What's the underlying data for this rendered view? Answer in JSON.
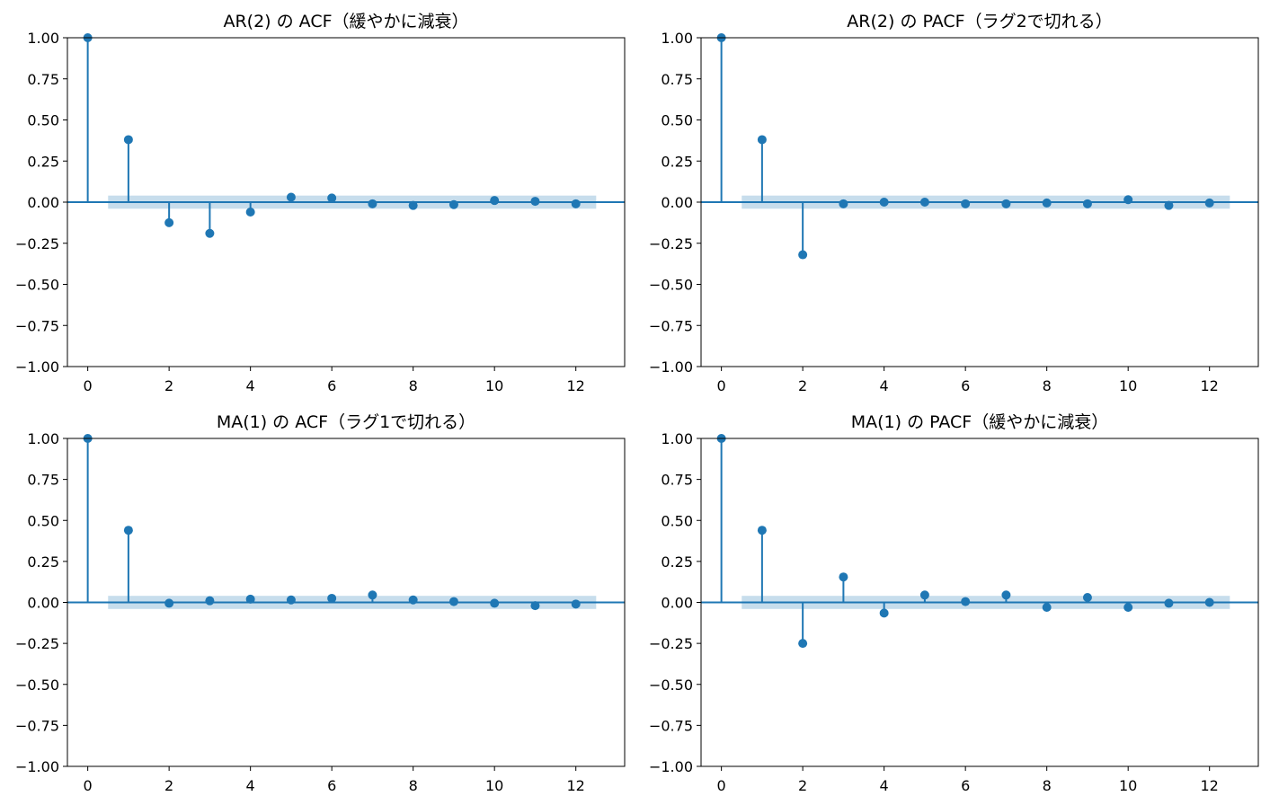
{
  "colors": {
    "stem": "#1f77b4",
    "marker": "#1f77b4",
    "confidence_band": "#1f77b4",
    "zero_line": "#1f77b4",
    "axes": "#000000"
  },
  "chart_data": [
    {
      "type": "stem",
      "title": "AR(2) の ACF（緩やかに減衰）",
      "xlabel": "",
      "ylabel": "",
      "xlim": [
        -0.5,
        13.2
      ],
      "ylim": [
        -1.0,
        1.0
      ],
      "x_ticks": [
        "0",
        "2",
        "4",
        "6",
        "8",
        "10",
        "12"
      ],
      "y_ticks": [
        "1.00",
        "0.75",
        "0.50",
        "0.25",
        "0.00",
        "−0.25",
        "−0.50",
        "−0.75",
        "−1.00"
      ],
      "grid": false,
      "confidence_band": {
        "lags": [
          0.5,
          12.5
        ],
        "halfwidth": 0.04
      },
      "lags": [
        0,
        1,
        2,
        3,
        4,
        5,
        6,
        7,
        8,
        9,
        10,
        11,
        12
      ],
      "values": [
        1.0,
        0.38,
        -0.125,
        -0.19,
        -0.06,
        0.03,
        0.025,
        -0.01,
        -0.02,
        -0.015,
        0.01,
        0.005,
        -0.01
      ]
    },
    {
      "type": "stem",
      "title": "AR(2) の PACF（ラグ2で切れる）",
      "xlabel": "",
      "ylabel": "",
      "xlim": [
        -0.5,
        13.2
      ],
      "ylim": [
        -1.0,
        1.0
      ],
      "x_ticks": [
        "0",
        "2",
        "4",
        "6",
        "8",
        "10",
        "12"
      ],
      "y_ticks": [
        "1.00",
        "0.75",
        "0.50",
        "0.25",
        "0.00",
        "−0.25",
        "−0.50",
        "−0.75",
        "−1.00"
      ],
      "grid": false,
      "confidence_band": {
        "lags": [
          0.5,
          12.5
        ],
        "halfwidth": 0.04
      },
      "lags": [
        0,
        1,
        2,
        3,
        4,
        5,
        6,
        7,
        8,
        9,
        10,
        11,
        12
      ],
      "values": [
        1.0,
        0.38,
        -0.32,
        -0.01,
        0.0,
        0.0,
        -0.01,
        -0.01,
        -0.005,
        -0.01,
        0.015,
        -0.02,
        -0.005
      ]
    },
    {
      "type": "stem",
      "title": "MA(1) の ACF（ラグ1で切れる）",
      "xlabel": "",
      "ylabel": "",
      "xlim": [
        -0.5,
        13.2
      ],
      "ylim": [
        -1.0,
        1.0
      ],
      "x_ticks": [
        "0",
        "2",
        "4",
        "6",
        "8",
        "10",
        "12"
      ],
      "y_ticks": [
        "1.00",
        "0.75",
        "0.50",
        "0.25",
        "0.00",
        "−0.25",
        "−0.50",
        "−0.75",
        "−1.00"
      ],
      "grid": false,
      "confidence_band": {
        "lags": [
          0.5,
          12.5
        ],
        "halfwidth": 0.04
      },
      "lags": [
        0,
        1,
        2,
        3,
        4,
        5,
        6,
        7,
        8,
        9,
        10,
        11,
        12
      ],
      "values": [
        1.0,
        0.44,
        -0.005,
        0.01,
        0.02,
        0.015,
        0.025,
        0.045,
        0.015,
        0.005,
        -0.005,
        -0.02,
        -0.01
      ]
    },
    {
      "type": "stem",
      "title": "MA(1) の PACF（緩やかに減衰）",
      "xlabel": "",
      "ylabel": "",
      "xlim": [
        -0.5,
        13.2
      ],
      "ylim": [
        -1.0,
        1.0
      ],
      "x_ticks": [
        "0",
        "2",
        "4",
        "6",
        "8",
        "10",
        "12"
      ],
      "y_ticks": [
        "1.00",
        "0.75",
        "0.50",
        "0.25",
        "0.00",
        "−0.25",
        "−0.50",
        "−0.75",
        "−1.00"
      ],
      "grid": false,
      "confidence_band": {
        "lags": [
          0.5,
          12.5
        ],
        "halfwidth": 0.04
      },
      "lags": [
        0,
        1,
        2,
        3,
        4,
        5,
        6,
        7,
        8,
        9,
        10,
        11,
        12
      ],
      "values": [
        1.0,
        0.44,
        -0.25,
        0.155,
        -0.065,
        0.045,
        0.005,
        0.045,
        -0.03,
        0.03,
        -0.03,
        -0.005,
        0.0
      ]
    }
  ]
}
